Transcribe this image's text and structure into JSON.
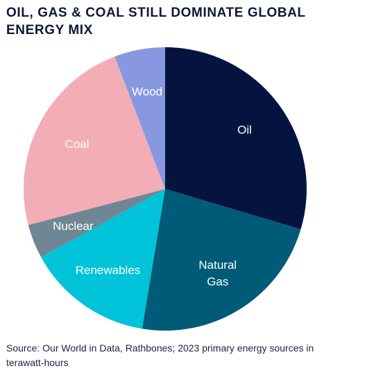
{
  "chart_data": {
    "type": "pie",
    "title": "OIL, GAS & COAL STILL DOMINATE GLOBAL ENERGY MIX",
    "source": "Source: Our World in Data, Rathbones; 2023 primary energy sources in terawatt-hours",
    "slices": [
      {
        "label": [
          "Oil"
        ],
        "value": 29.6,
        "color": "#04143f",
        "label_color": "#ffffff"
      },
      {
        "label": [
          "Natural",
          "Gas"
        ],
        "value": 23.0,
        "color": "#005b78",
        "label_color": "#ffffff"
      },
      {
        "label": [
          "Renewables"
        ],
        "value": 14.4,
        "color": "#00c2d9",
        "label_color": "#ffffff"
      },
      {
        "label": [
          "Nuclear"
        ],
        "value": 3.9,
        "color": "#6f8794",
        "label_color": "#ffffff"
      },
      {
        "label": [
          "Coal"
        ],
        "value": 23.3,
        "color": "#f3adb7",
        "label_color": "#ffffff"
      },
      {
        "label": [
          "Wood"
        ],
        "value": 5.8,
        "color": "#8798e0",
        "label_color": "#ffffff"
      }
    ]
  }
}
